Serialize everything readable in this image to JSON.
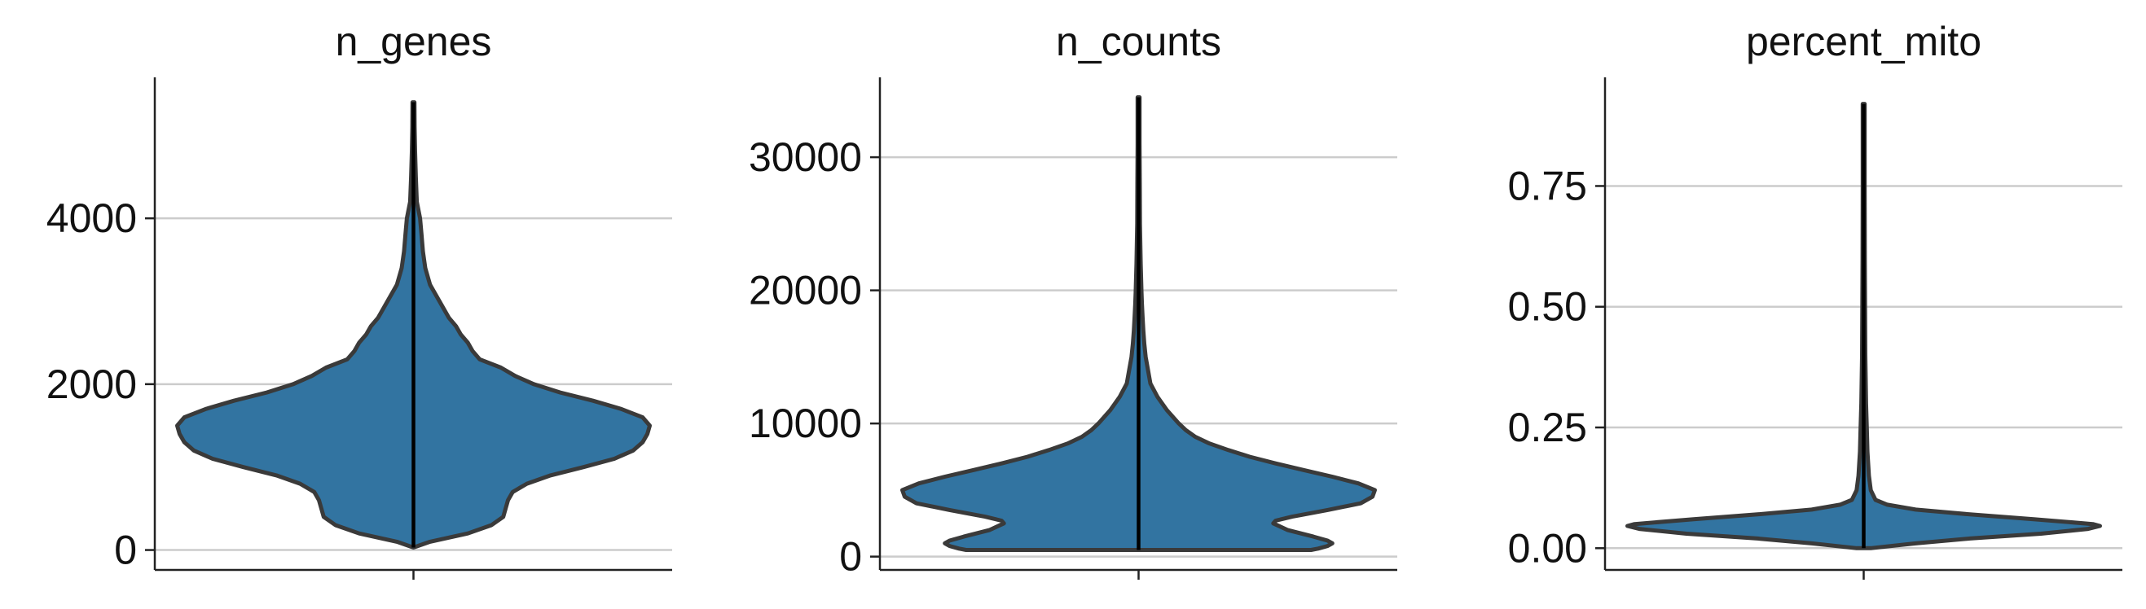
{
  "chart_data": [
    {
      "type": "violin",
      "title": "n_genes",
      "yticks": [
        0,
        2000,
        4000
      ],
      "ylim": [
        -240,
        5700
      ],
      "grid": true,
      "color": "#3274a1",
      "data_range": [
        30,
        5400
      ],
      "density_profile": [
        [
          30,
          0.0
        ],
        [
          100,
          0.07
        ],
        [
          200,
          0.23
        ],
        [
          300,
          0.33
        ],
        [
          400,
          0.38
        ],
        [
          500,
          0.39
        ],
        [
          600,
          0.4
        ],
        [
          700,
          0.42
        ],
        [
          800,
          0.48
        ],
        [
          900,
          0.58
        ],
        [
          1000,
          0.72
        ],
        [
          1100,
          0.85
        ],
        [
          1200,
          0.93
        ],
        [
          1300,
          0.97
        ],
        [
          1400,
          0.99
        ],
        [
          1500,
          1.0
        ],
        [
          1600,
          0.97
        ],
        [
          1700,
          0.88
        ],
        [
          1800,
          0.76
        ],
        [
          1900,
          0.62
        ],
        [
          2000,
          0.51
        ],
        [
          2100,
          0.43
        ],
        [
          2200,
          0.37
        ],
        [
          2300,
          0.28
        ],
        [
          2400,
          0.25
        ],
        [
          2500,
          0.23
        ],
        [
          2600,
          0.2
        ],
        [
          2700,
          0.18
        ],
        [
          2800,
          0.15
        ],
        [
          3000,
          0.11
        ],
        [
          3200,
          0.07
        ],
        [
          3400,
          0.05
        ],
        [
          3600,
          0.04
        ],
        [
          3800,
          0.034
        ],
        [
          4000,
          0.028
        ],
        [
          4200,
          0.014
        ],
        [
          4500,
          0.01
        ],
        [
          4800,
          0.007
        ],
        [
          5100,
          0.005
        ],
        [
          5400,
          0.004
        ]
      ]
    },
    {
      "type": "violin",
      "title": "n_counts",
      "yticks": [
        0,
        10000,
        20000,
        30000
      ],
      "ylim": [
        -1000,
        36000
      ],
      "grid": true,
      "color": "#3274a1",
      "data_range": [
        500,
        34500
      ],
      "density_profile": [
        [
          500,
          0.73
        ],
        [
          600,
          0.76
        ],
        [
          800,
          0.8
        ],
        [
          1000,
          0.82
        ],
        [
          1200,
          0.8
        ],
        [
          1500,
          0.74
        ],
        [
          2000,
          0.63
        ],
        [
          2500,
          0.57
        ],
        [
          2700,
          0.58
        ],
        [
          3000,
          0.65
        ],
        [
          3500,
          0.8
        ],
        [
          4000,
          0.94
        ],
        [
          4500,
          0.99
        ],
        [
          5000,
          1.0
        ],
        [
          5500,
          0.93
        ],
        [
          6000,
          0.82
        ],
        [
          6500,
          0.7
        ],
        [
          7000,
          0.58
        ],
        [
          7500,
          0.47
        ],
        [
          8000,
          0.38
        ],
        [
          8500,
          0.3
        ],
        [
          9000,
          0.24
        ],
        [
          9500,
          0.2
        ],
        [
          10000,
          0.17
        ],
        [
          11000,
          0.12
        ],
        [
          12000,
          0.08
        ],
        [
          13000,
          0.05
        ],
        [
          14000,
          0.04
        ],
        [
          15000,
          0.03
        ],
        [
          16000,
          0.024
        ],
        [
          17000,
          0.02
        ],
        [
          18000,
          0.017
        ],
        [
          19000,
          0.014
        ],
        [
          20000,
          0.012
        ],
        [
          22000,
          0.009
        ],
        [
          25000,
          0.006
        ],
        [
          28000,
          0.005
        ],
        [
          31000,
          0.004
        ],
        [
          34500,
          0.004
        ]
      ]
    },
    {
      "type": "violin",
      "title": "percent_mito",
      "yticks": [
        0.0,
        0.25,
        0.5,
        0.75
      ],
      "yticklabels": [
        "0.00",
        "0.25",
        "0.50",
        "0.75"
      ],
      "ylim": [
        -0.045,
        0.975
      ],
      "grid": true,
      "color": "#3274a1",
      "data_range": [
        0.0,
        0.92
      ],
      "density_profile": [
        [
          0.0,
          0.03
        ],
        [
          0.01,
          0.22
        ],
        [
          0.02,
          0.45
        ],
        [
          0.03,
          0.75
        ],
        [
          0.04,
          0.95
        ],
        [
          0.046,
          1.0
        ],
        [
          0.05,
          0.97
        ],
        [
          0.06,
          0.72
        ],
        [
          0.07,
          0.45
        ],
        [
          0.08,
          0.22
        ],
        [
          0.09,
          0.1
        ],
        [
          0.1,
          0.05
        ],
        [
          0.12,
          0.03
        ],
        [
          0.15,
          0.022
        ],
        [
          0.2,
          0.016
        ],
        [
          0.25,
          0.013
        ],
        [
          0.3,
          0.01
        ],
        [
          0.4,
          0.007
        ],
        [
          0.5,
          0.006
        ],
        [
          0.6,
          0.005
        ],
        [
          0.75,
          0.004
        ],
        [
          0.92,
          0.004
        ]
      ]
    }
  ]
}
